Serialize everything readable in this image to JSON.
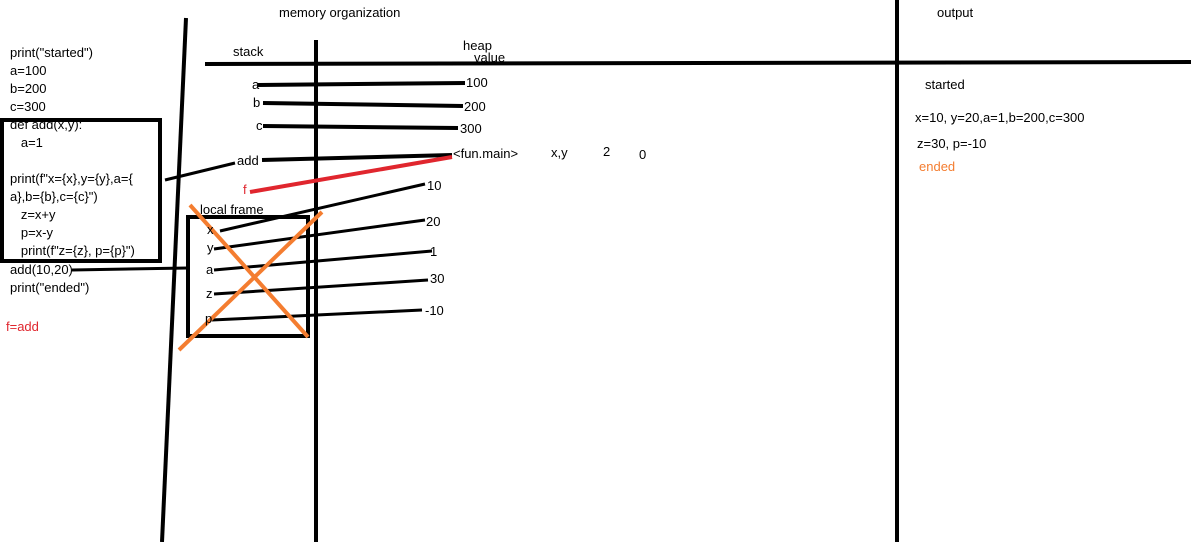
{
  "headers": {
    "memory_organization": "memory organization",
    "stack": "stack",
    "heap": "heap",
    "value": "value",
    "output": "output",
    "local_frame": "local frame"
  },
  "code": [
    "print(\"started\")",
    "a=100",
    "b=200",
    "c=300",
    "def add(x,y):",
    "   a=1",
    "",
    "print(f\"x={x},y={y},a={",
    "a},b={b},c={c}\")",
    "   z=x+y",
    "   p=x-y",
    "   print(f\"z={z}, p={p}\")",
    "add(10,20)",
    "print(\"ended\")"
  ],
  "f_assign": "f=add",
  "stack_vars": [
    "a",
    "b",
    "c",
    "add",
    "f"
  ],
  "heap_values": [
    "100",
    "200",
    "300",
    "<fun.main>"
  ],
  "fun_extra": [
    "x,y",
    "2",
    "0"
  ],
  "local_vars": [
    "x",
    "y",
    "a",
    "z",
    "p"
  ],
  "local_values": [
    "10",
    "20",
    "1",
    "30",
    "-10"
  ],
  "output_lines": [
    "started",
    "x=10, y=20,a=1,b=200,c=300",
    "z=30, p=-10",
    "ended"
  ],
  "colors": {
    "ink": "#000000",
    "red": "#e0262e",
    "orange": "#f47d30"
  }
}
